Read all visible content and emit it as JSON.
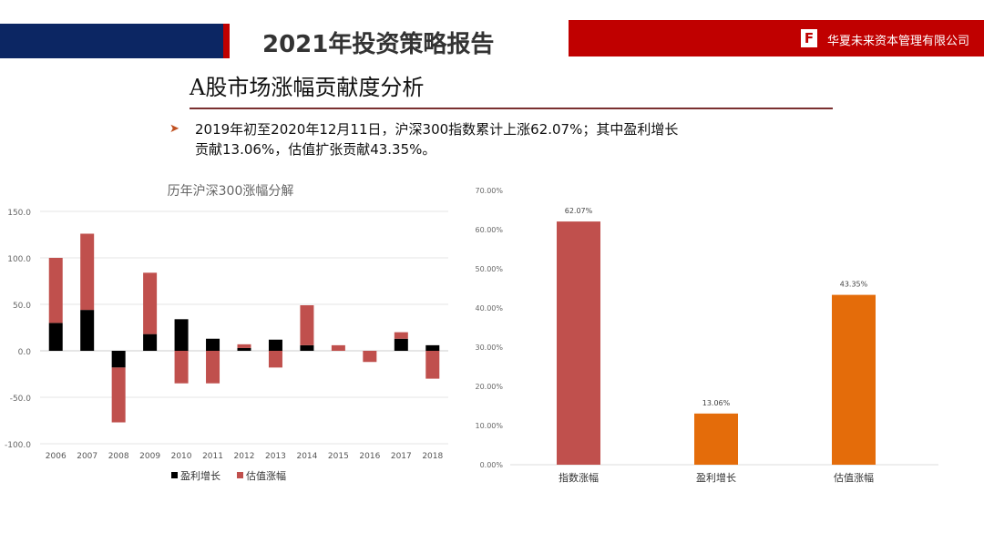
{
  "header": {
    "report_title": "2021年投资策略报告",
    "company": "华夏未来资本管理有限公司",
    "logo_letter": "F"
  },
  "section_title": "A股市场涨幅贡献度分析",
  "summary": "2019年初至2020年12月11日，沪深300指数累计上涨62.07%；其中盈利增长贡献13.06%，估值扩张贡献43.35%。",
  "colors": {
    "navy": "#0c2663",
    "red": "#c00000",
    "earnings": "#000000",
    "valuation": "#c0504d",
    "index": "#c0504d",
    "orange": "#e46c0a"
  },
  "chart_data": [
    {
      "type": "bar",
      "stacked": true,
      "title": "历年沪深300涨幅分解",
      "categories": [
        "2006",
        "2007",
        "2008",
        "2009",
        "2010",
        "2011",
        "2012",
        "2013",
        "2014",
        "2015",
        "2016",
        "2017",
        "2018"
      ],
      "series": [
        {
          "name": "盈利增长",
          "color": "#000000",
          "values": [
            30,
            44,
            -18,
            18,
            34,
            13,
            3,
            12,
            6,
            0,
            0,
            13,
            6
          ]
        },
        {
          "name": "估值涨幅",
          "color": "#c0504d",
          "values": [
            70,
            82,
            -59,
            66,
            -35,
            -35,
            4,
            -18,
            43,
            6,
            -12,
            7,
            -30
          ]
        }
      ],
      "ylim": [
        -100,
        150
      ],
      "yticks": [
        "150.0",
        "100.0",
        "50.0",
        "0.0",
        "-50.0",
        "-100.0"
      ],
      "grid": true,
      "legend": "bottom"
    },
    {
      "type": "bar",
      "categories": [
        "指数涨幅",
        "盈利增长",
        "估值涨幅"
      ],
      "values": [
        62.07,
        13.06,
        43.35
      ],
      "labels": [
        "62.07%",
        "13.06%",
        "43.35%"
      ],
      "colors": [
        "#c0504d",
        "#e46c0a",
        "#e46c0a"
      ],
      "ylim": [
        0,
        70
      ],
      "yticks": [
        "0.00%",
        "10.00%",
        "20.00%",
        "30.00%",
        "40.00%",
        "50.00%",
        "60.00%",
        "70.00%"
      ],
      "grid": false
    }
  ]
}
